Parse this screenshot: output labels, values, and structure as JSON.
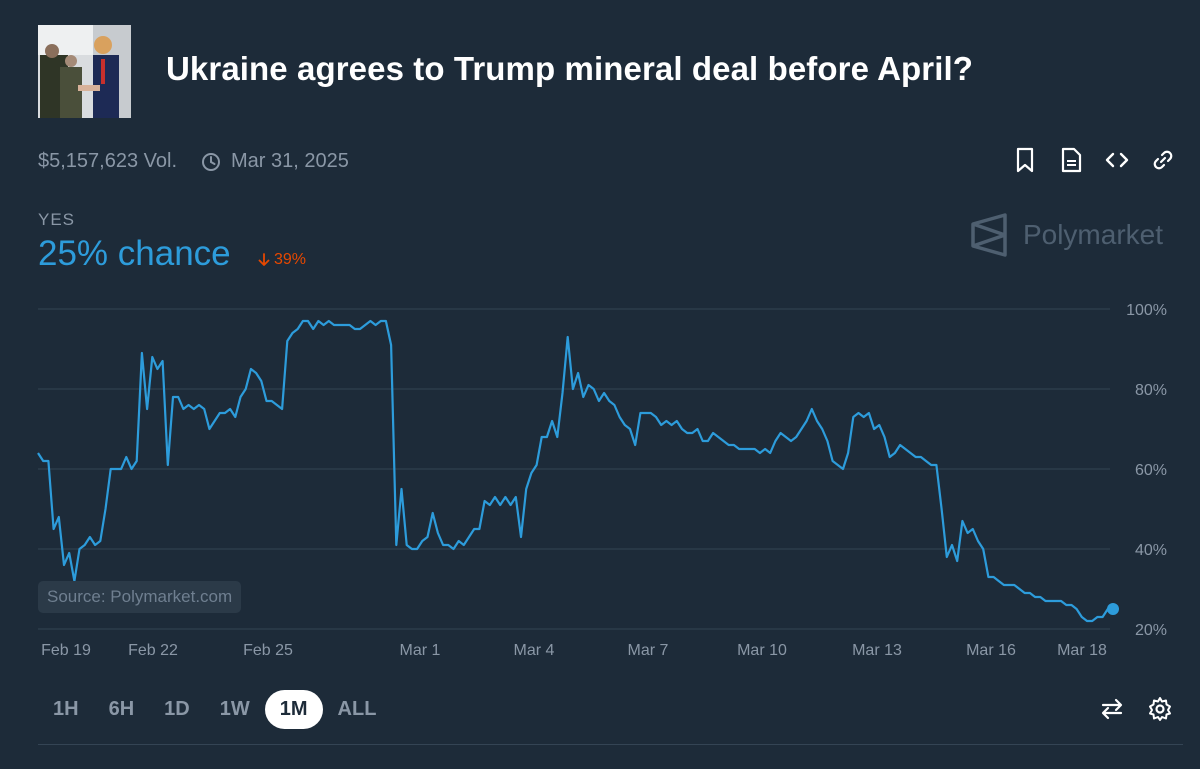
{
  "market": {
    "title": "Ukraine agrees to Trump mineral deal before April?",
    "volume": "$5,157,623 Vol.",
    "end_date": "Mar 31, 2025",
    "outcome_label": "YES",
    "chance": "25% chance",
    "delta": "39%",
    "brand": "Polymarket",
    "source": "Source: Polymarket.com"
  },
  "colors": {
    "background": "#1d2b39",
    "line": "#2d9cdb",
    "delta": "#e64800"
  },
  "icons": [
    "bookmark-icon",
    "document-icon",
    "code-icon",
    "link-icon",
    "clock-icon",
    "swap-icon",
    "gear-icon",
    "polymarket-logo-icon",
    "arrow-down-icon"
  ],
  "time_ranges": [
    "1H",
    "6H",
    "1D",
    "1W",
    "1M",
    "ALL"
  ],
  "active_range": "1M",
  "chart_data": {
    "type": "line",
    "title": "",
    "series": [
      {
        "name": "YES",
        "values": [
          64,
          62,
          62,
          45,
          48,
          36,
          39,
          32,
          40,
          41,
          43,
          41,
          42,
          50,
          60,
          60,
          60,
          63,
          60,
          62,
          89,
          75,
          88,
          85,
          87,
          61,
          78,
          78,
          75,
          76,
          75,
          76,
          75,
          70,
          72,
          74,
          74,
          75,
          73,
          78,
          80,
          85,
          84,
          82,
          77,
          77,
          76,
          75,
          92,
          94,
          95,
          97,
          97,
          95,
          97,
          96,
          97,
          96,
          96,
          96,
          96,
          95,
          95,
          96,
          97,
          96,
          97,
          97,
          91,
          41,
          55,
          41,
          40,
          40,
          42,
          43,
          49,
          44,
          41,
          41,
          40,
          42,
          41,
          43,
          45,
          45,
          52,
          51,
          53,
          51,
          53,
          51,
          53,
          43,
          55,
          59,
          61,
          68,
          68,
          72,
          68,
          79,
          93,
          80,
          84,
          78,
          81,
          80,
          77,
          79,
          77,
          76,
          73,
          71,
          70,
          66,
          74,
          74,
          74,
          73,
          71,
          72,
          71,
          72,
          70,
          69,
          69,
          70,
          67,
          67,
          69,
          68,
          67,
          66,
          66,
          65,
          65,
          65,
          65,
          64,
          65,
          64,
          67,
          69,
          68,
          67,
          68,
          70,
          72,
          75,
          72,
          70,
          67,
          62,
          61,
          60,
          64,
          73,
          74,
          73,
          74,
          70,
          71,
          68,
          63,
          64,
          66,
          65,
          64,
          63,
          63,
          62,
          61,
          61,
          50,
          38,
          41,
          37,
          47,
          44,
          45,
          42,
          40,
          33,
          33,
          32,
          31,
          31,
          31,
          30,
          29,
          29,
          28,
          28,
          27,
          27,
          27,
          27,
          26,
          26,
          25,
          23,
          22,
          22,
          23,
          23,
          25,
          25
        ],
        "end_value": 25
      }
    ],
    "x_tick_labels": [
      "Feb 19",
      "Feb 22",
      "Feb 25",
      "Mar 1",
      "Mar 4",
      "Mar 7",
      "Mar 10",
      "Mar 13",
      "Mar 16",
      "Mar 18"
    ],
    "y_tick_labels": [
      "100%",
      "80%",
      "60%",
      "40%",
      "20%"
    ],
    "ylim": [
      20,
      100
    ],
    "xlabel": "",
    "ylabel": "",
    "grid": true
  }
}
